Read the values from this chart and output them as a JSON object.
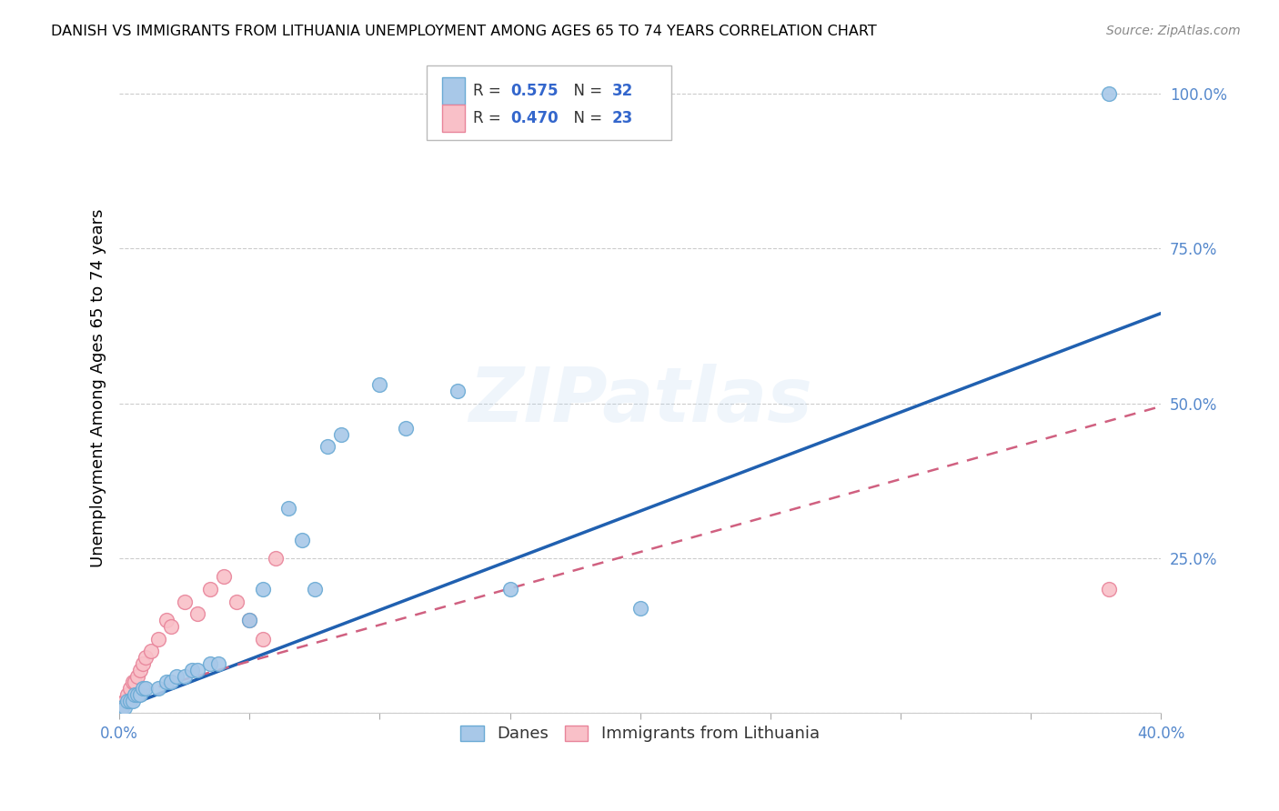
{
  "title": "DANISH VS IMMIGRANTS FROM LITHUANIA UNEMPLOYMENT AMONG AGES 65 TO 74 YEARS CORRELATION CHART",
  "source": "Source: ZipAtlas.com",
  "ylabel": "Unemployment Among Ages 65 to 74 years",
  "xlim": [
    0.0,
    0.4
  ],
  "ylim": [
    0.0,
    1.05
  ],
  "xticks": [
    0.0,
    0.05,
    0.1,
    0.15,
    0.2,
    0.25,
    0.3,
    0.35,
    0.4
  ],
  "xticklabels_visible": [
    "0.0%",
    "",
    "",
    "",
    "",
    "",
    "",
    "",
    "40.0%"
  ],
  "yticks": [
    0.0,
    0.25,
    0.5,
    0.75,
    1.0
  ],
  "yticklabels": [
    "",
    "25.0%",
    "50.0%",
    "75.0%",
    "100.0%"
  ],
  "danes_color": "#a8c8e8",
  "danes_edge": "#6aaad4",
  "lith_color": "#f9c0c8",
  "lith_edge": "#e8849a",
  "trend_danes_color": "#2060b0",
  "trend_lith_color": "#d06080",
  "R_danes": 0.575,
  "N_danes": 32,
  "R_lith": 0.47,
  "N_lith": 23,
  "watermark": "ZIPatlas",
  "danes_x": [
    0.001,
    0.002,
    0.003,
    0.004,
    0.005,
    0.006,
    0.007,
    0.008,
    0.009,
    0.01,
    0.015,
    0.018,
    0.02,
    0.022,
    0.025,
    0.028,
    0.03,
    0.035,
    0.038,
    0.05,
    0.055,
    0.065,
    0.07,
    0.075,
    0.08,
    0.085,
    0.1,
    0.11,
    0.13,
    0.15,
    0.2,
    0.38
  ],
  "danes_y": [
    0.01,
    0.01,
    0.02,
    0.02,
    0.02,
    0.03,
    0.03,
    0.03,
    0.04,
    0.04,
    0.04,
    0.05,
    0.05,
    0.06,
    0.06,
    0.07,
    0.07,
    0.08,
    0.08,
    0.15,
    0.2,
    0.33,
    0.28,
    0.2,
    0.43,
    0.45,
    0.53,
    0.46,
    0.52,
    0.2,
    0.17,
    1.0
  ],
  "lith_x": [
    0.001,
    0.002,
    0.003,
    0.004,
    0.005,
    0.006,
    0.007,
    0.008,
    0.009,
    0.01,
    0.012,
    0.015,
    0.018,
    0.02,
    0.025,
    0.03,
    0.035,
    0.04,
    0.045,
    0.05,
    0.055,
    0.06,
    0.38
  ],
  "lith_y": [
    0.01,
    0.02,
    0.03,
    0.04,
    0.05,
    0.05,
    0.06,
    0.07,
    0.08,
    0.09,
    0.1,
    0.12,
    0.15,
    0.14,
    0.18,
    0.16,
    0.2,
    0.22,
    0.18,
    0.15,
    0.12,
    0.25,
    0.2
  ],
  "trend_danes_x0": 0.0,
  "trend_danes_y0": 0.007,
  "trend_danes_x1": 0.4,
  "trend_danes_y1": 0.645,
  "trend_lith_x0": 0.0,
  "trend_lith_y0": 0.025,
  "trend_lith_x1": 0.4,
  "trend_lith_y1": 0.495
}
